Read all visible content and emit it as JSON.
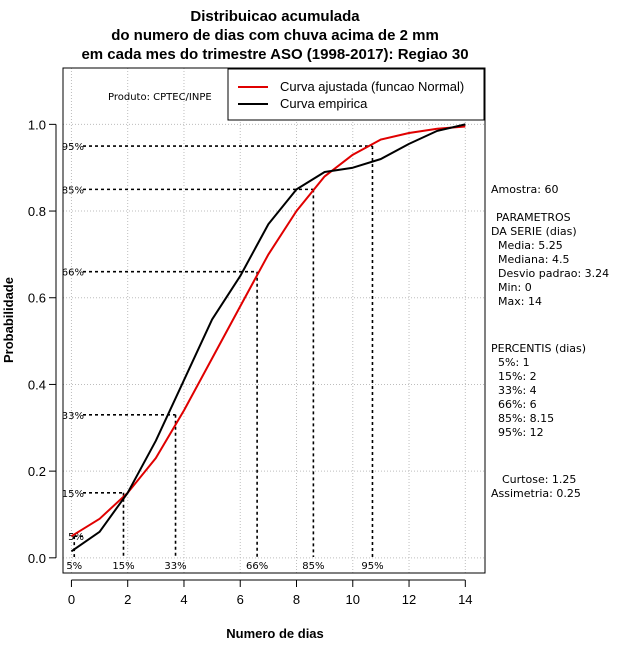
{
  "chart_data": {
    "type": "line",
    "title": [
      "Distribuicao acumulada",
      "do numero de dias com chuva acima de 2 mm",
      "em cada mes do trimestre ASO (1998-2017): Regiao 30"
    ],
    "xlabel": "Numero de dias",
    "ylabel": "Probabilidade",
    "xlim": [
      -0.3,
      14.7
    ],
    "ylim": [
      -0.035,
      1.13
    ],
    "x_ticks": [
      0,
      2,
      4,
      6,
      8,
      10,
      12,
      14
    ],
    "y_ticks": [
      0.0,
      0.2,
      0.4,
      0.6,
      0.8,
      1.0
    ],
    "x_tick_labels": [
      "0",
      "2",
      "4",
      "6",
      "8",
      "10",
      "12",
      "14"
    ],
    "y_tick_labels": [
      "0.0",
      "0.2",
      "0.4",
      "0.6",
      "0.8",
      "1.0"
    ],
    "grid": true,
    "credit": "Produto: CPTEC/INPE",
    "legend": {
      "position": "top-right",
      "entries": [
        {
          "label": "Curva ajustada (funcao Normal)",
          "color": "#e00000"
        },
        {
          "label": "Curva empirica",
          "color": "#000000"
        }
      ]
    },
    "series": [
      {
        "name": "Curva ajustada (funcao Normal)",
        "color": "#e00000",
        "x": [
          0,
          1,
          2,
          3,
          4,
          5,
          6,
          7,
          8,
          9,
          10,
          11,
          12,
          13,
          14
        ],
        "y": [
          0.05,
          0.09,
          0.15,
          0.23,
          0.34,
          0.46,
          0.58,
          0.7,
          0.8,
          0.88,
          0.93,
          0.965,
          0.98,
          0.99,
          0.995
        ]
      },
      {
        "name": "Curva empirica",
        "color": "#000000",
        "x": [
          0,
          1,
          2,
          3,
          4,
          5,
          6,
          7,
          8,
          9,
          10,
          11,
          12,
          13,
          14
        ],
        "y": [
          0.015,
          0.06,
          0.15,
          0.27,
          0.41,
          0.55,
          0.65,
          0.77,
          0.85,
          0.89,
          0.9,
          0.92,
          0.955,
          0.985,
          1.0
        ]
      }
    ],
    "percentile_markers": [
      {
        "label": "5%",
        "x": 0.1,
        "y": 0.05
      },
      {
        "label": "15%",
        "x": 1.85,
        "y": 0.15
      },
      {
        "label": "33%",
        "x": 3.7,
        "y": 0.33
      },
      {
        "label": "66%",
        "x": 6.6,
        "y": 0.66
      },
      {
        "label": "85%",
        "x": 8.6,
        "y": 0.85
      },
      {
        "label": "95%",
        "x": 10.7,
        "y": 0.95
      }
    ]
  },
  "side_panel": {
    "sample": "Amostra: 60",
    "params_heading_1": "PARAMETROS",
    "params_heading_2": "DA SERIE (dias)",
    "media": "Media: 5.25",
    "mediana": "Mediana: 4.5",
    "desvio": "Desvio padrao: 3.24",
    "min": "Min: 0",
    "max": "Max: 14",
    "percentis_heading": "PERCENTIS (dias)",
    "p5": "5%: 1",
    "p15": "15%: 2",
    "p33": "33%: 4",
    "p66": "66%: 6",
    "p85": "85%: 8.15",
    "p95": "95%: 12",
    "curtose": "Curtose: 1.25",
    "assimetria": "Assimetria: 0.25"
  }
}
